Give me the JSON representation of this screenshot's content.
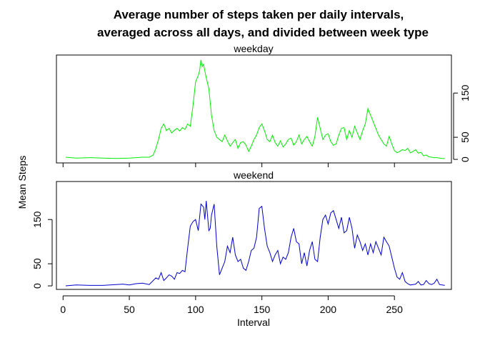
{
  "chart_data": {
    "type": "line",
    "title_lines": [
      "Average number of steps taken per daily intervals,",
      "averaged across all days, and divided between week type"
    ],
    "xlabel": "Interval",
    "ylabel": "Mean Steps",
    "xlim": [
      -5,
      293
    ],
    "ylim": [
      -8,
      236
    ],
    "x_ticks": [
      0,
      50,
      100,
      150,
      200,
      250
    ],
    "y_ticks": [
      0,
      50,
      150
    ],
    "grid": false,
    "panels": [
      {
        "name": "weekday",
        "color": "#00ee00",
        "y_axis_side": "right",
        "x": [
          2,
          10,
          20,
          30,
          40,
          50,
          55,
          60,
          65,
          68,
          70,
          72,
          74,
          76,
          78,
          80,
          82,
          84,
          86,
          88,
          90,
          92,
          94,
          96,
          98,
          100,
          102,
          103,
          104,
          105,
          106,
          107,
          108,
          110,
          112,
          114,
          116,
          118,
          120,
          122,
          124,
          126,
          128,
          130,
          132,
          134,
          136,
          138,
          140,
          142,
          144,
          146,
          148,
          150,
          152,
          154,
          156,
          158,
          160,
          162,
          164,
          166,
          168,
          170,
          172,
          174,
          176,
          178,
          180,
          182,
          184,
          186,
          188,
          190,
          192,
          194,
          196,
          198,
          200,
          202,
          204,
          206,
          208,
          210,
          212,
          214,
          216,
          218,
          220,
          222,
          224,
          226,
          228,
          230,
          232,
          234,
          236,
          238,
          240,
          242,
          244,
          246,
          248,
          250,
          252,
          254,
          256,
          258,
          260,
          262,
          264,
          266,
          268,
          270,
          272,
          274,
          276,
          278,
          280,
          282,
          284,
          286,
          288
        ],
        "values": [
          5,
          3,
          4,
          3,
          2,
          3,
          4,
          5,
          5,
          10,
          25,
          45,
          70,
          80,
          65,
          70,
          60,
          66,
          70,
          64,
          72,
          68,
          80,
          75,
          120,
          175,
          190,
          200,
          225,
          210,
          215,
          200,
          185,
          160,
          100,
          65,
          50,
          45,
          40,
          55,
          42,
          30,
          38,
          45,
          25,
          38,
          40,
          32,
          18,
          30,
          45,
          55,
          72,
          80,
          65,
          45,
          40,
          55,
          38,
          30,
          42,
          28,
          35,
          45,
          48,
          32,
          40,
          55,
          35,
          45,
          52,
          40,
          30,
          52,
          95,
          70,
          45,
          55,
          58,
          40,
          32,
          35,
          55,
          70,
          72,
          45,
          65,
          50,
          75,
          60,
          45,
          65,
          80,
          115,
          100,
          85,
          70,
          55,
          45,
          35,
          30,
          52,
          35,
          20,
          15,
          18,
          22,
          20,
          25,
          15,
          18,
          22,
          14,
          16,
          8,
          10,
          6,
          5,
          4,
          4,
          3,
          2,
          2
        ]
      },
      {
        "name": "weekend",
        "color": "#0000cd",
        "y_axis_side": "left",
        "x": [
          2,
          10,
          20,
          30,
          40,
          45,
          50,
          55,
          60,
          65,
          70,
          72,
          74,
          76,
          78,
          80,
          82,
          84,
          86,
          88,
          90,
          92,
          94,
          96,
          98,
          100,
          102,
          104,
          106,
          107,
          108,
          110,
          111,
          112,
          114,
          116,
          118,
          120,
          122,
          124,
          126,
          128,
          130,
          132,
          134,
          136,
          138,
          140,
          142,
          144,
          146,
          148,
          150,
          152,
          154,
          156,
          158,
          160,
          162,
          164,
          166,
          168,
          170,
          172,
          174,
          176,
          178,
          180,
          182,
          184,
          186,
          188,
          190,
          192,
          194,
          196,
          198,
          200,
          202,
          204,
          206,
          208,
          210,
          212,
          214,
          216,
          218,
          220,
          222,
          224,
          226,
          228,
          230,
          232,
          234,
          236,
          238,
          240,
          242,
          244,
          246,
          248,
          250,
          252,
          254,
          256,
          258,
          260,
          262,
          264,
          266,
          268,
          270,
          272,
          274,
          276,
          278,
          280,
          282,
          284,
          286,
          288
        ],
        "values": [
          0,
          2,
          1,
          1,
          3,
          4,
          2,
          5,
          6,
          3,
          18,
          15,
          30,
          12,
          18,
          25,
          22,
          15,
          30,
          28,
          35,
          32,
          85,
          135,
          145,
          150,
          125,
          185,
          178,
          150,
          192,
          125,
          130,
          160,
          185,
          90,
          25,
          40,
          55,
          90,
          75,
          110,
          70,
          55,
          60,
          40,
          35,
          55,
          80,
          85,
          110,
          175,
          180,
          130,
          90,
          75,
          55,
          70,
          80,
          50,
          65,
          60,
          75,
          110,
          130,
          100,
          95,
          50,
          75,
          45,
          80,
          100,
          60,
          55,
          110,
          150,
          160,
          140,
          165,
          170,
          150,
          130,
          155,
          120,
          125,
          155,
          130,
          85,
          115,
          100,
          80,
          95,
          70,
          95,
          75,
          100,
          85,
          70,
          110,
          100,
          90,
          65,
          40,
          20,
          15,
          30,
          10,
          5,
          2,
          3,
          4,
          10,
          2,
          3,
          12,
          5,
          3,
          6,
          15,
          3,
          2,
          1
        ]
      }
    ]
  }
}
